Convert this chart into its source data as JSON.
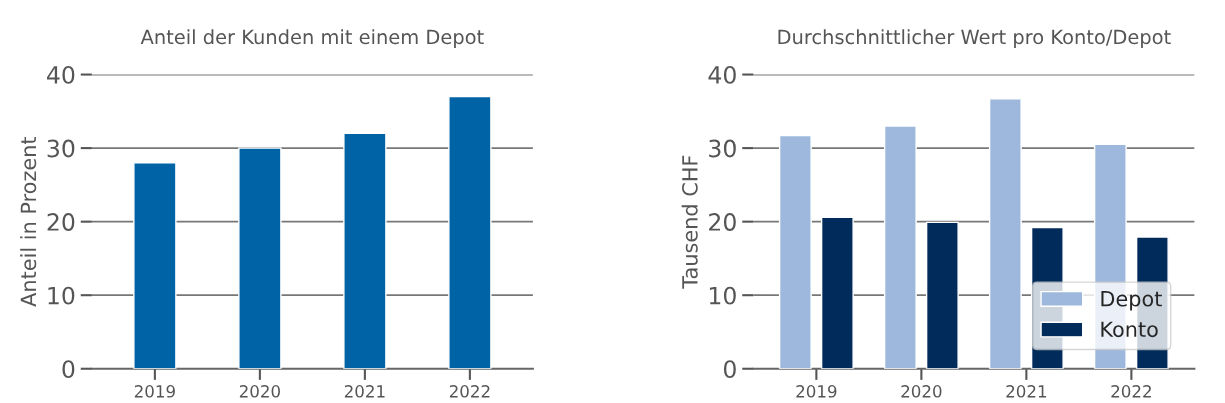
{
  "chart_data": [
    {
      "type": "bar",
      "title": "Anteil der Kunden mit einem Depot",
      "ylabel": "Anteil in Prozent",
      "categories": [
        "2019",
        "2020",
        "2021",
        "2022"
      ],
      "series": [
        {
          "color": "#0063a6",
          "values": [
            28,
            30,
            32,
            37
          ]
        }
      ],
      "ylim": [
        0,
        40
      ],
      "yticks": [
        0,
        10,
        20,
        30,
        40
      ],
      "grid": "y",
      "legend": false
    },
    {
      "type": "bar",
      "title": "Durchschnittlicher Wert pro Konto/Depot",
      "ylabel": "Tausend CHF",
      "categories": [
        "2019",
        "2020",
        "2021",
        "2022"
      ],
      "series": [
        {
          "name": "Depot",
          "color": "#9db8dc",
          "values": [
            31.7,
            33.0,
            36.7,
            30.5
          ]
        },
        {
          "name": "Konto",
          "color": "#002b5a",
          "values": [
            20.6,
            19.9,
            19.2,
            17.9
          ]
        }
      ],
      "ylim": [
        0,
        40
      ],
      "yticks": [
        0,
        10,
        20,
        30,
        40
      ],
      "grid": "y",
      "legend": "bottom right"
    }
  ]
}
